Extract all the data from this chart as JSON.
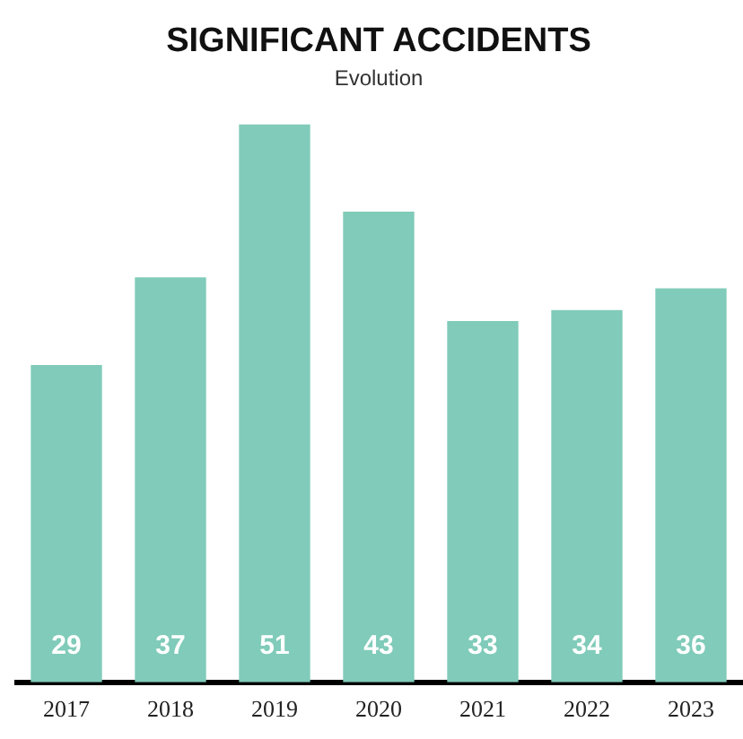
{
  "chart_data": {
    "type": "bar",
    "title": "SIGNIFICANT ACCIDENTS",
    "subtitle": "Evolution",
    "categories": [
      "2017",
      "2018",
      "2019",
      "2020",
      "2021",
      "2022",
      "2023"
    ],
    "values": [
      29,
      37,
      51,
      43,
      33,
      34,
      36
    ],
    "color": "#80cbb9",
    "data_labels": true,
    "grid": false,
    "legend": false
  }
}
